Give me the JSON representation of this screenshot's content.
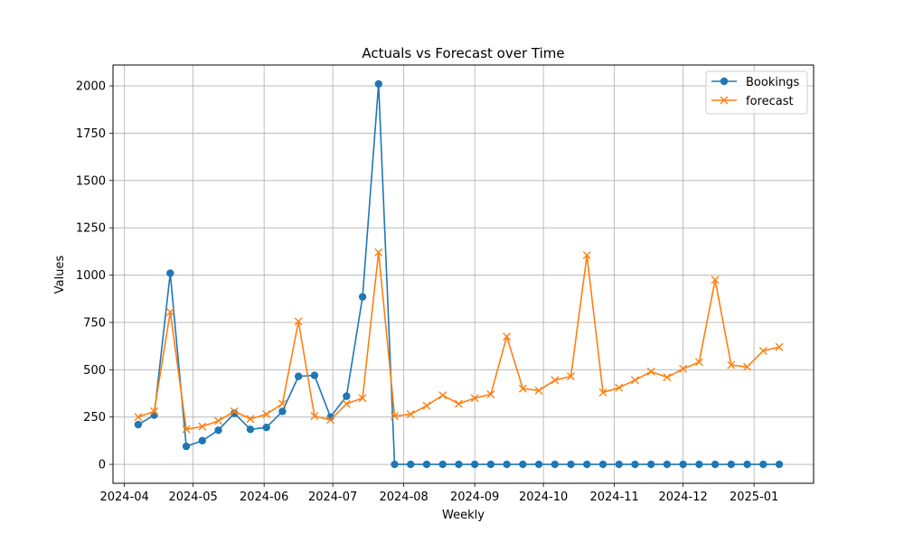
{
  "chart_data": {
    "type": "line",
    "title": "Actuals vs Forecast over Time",
    "xlabel": "Weekly",
    "ylabel": "Values",
    "ylim": [
      -100,
      2110
    ],
    "xlim": [
      "2024-03-27",
      "2025-01-27"
    ],
    "y_ticks": [
      0,
      250,
      500,
      750,
      1000,
      1250,
      1500,
      1750,
      2000
    ],
    "x_ticks": [
      "2024-04-01",
      "2024-05-01",
      "2024-06-01",
      "2024-07-01",
      "2024-08-01",
      "2024-09-01",
      "2024-10-01",
      "2024-11-01",
      "2024-12-01",
      "2025-01-01"
    ],
    "x_tick_labels": [
      "2024-04",
      "2024-05",
      "2024-06",
      "2024-07",
      "2024-08",
      "2024-09",
      "2024-10",
      "2024-11",
      "2024-12",
      "2025-01"
    ],
    "grid": true,
    "legend_position": "top-right",
    "dates": [
      "2024-04-07",
      "2024-04-14",
      "2024-04-21",
      "2024-04-28",
      "2024-05-05",
      "2024-05-12",
      "2024-05-19",
      "2024-05-26",
      "2024-06-02",
      "2024-06-09",
      "2024-06-16",
      "2024-06-23",
      "2024-06-30",
      "2024-07-07",
      "2024-07-14",
      "2024-07-21",
      "2024-07-28",
      "2024-08-04",
      "2024-08-11",
      "2024-08-18",
      "2024-08-25",
      "2024-09-01",
      "2024-09-08",
      "2024-09-15",
      "2024-09-22",
      "2024-09-29",
      "2024-10-06",
      "2024-10-13",
      "2024-10-20",
      "2024-10-27",
      "2024-11-03",
      "2024-11-10",
      "2024-11-17",
      "2024-11-24",
      "2024-12-01",
      "2024-12-08",
      "2024-12-15",
      "2024-12-22",
      "2024-12-29",
      "2025-01-05",
      "2025-01-12"
    ],
    "series": [
      {
        "name": "Bookings",
        "color": "#1f77b4",
        "marker": "circle",
        "values": [
          210,
          260,
          1010,
          95,
          125,
          180,
          270,
          185,
          195,
          280,
          465,
          470,
          250,
          360,
          885,
          2010,
          0,
          0,
          0,
          0,
          0,
          0,
          0,
          0,
          0,
          0,
          0,
          0,
          0,
          0,
          0,
          0,
          0,
          0,
          0,
          0,
          0,
          0,
          0,
          0,
          0
        ]
      },
      {
        "name": "forecast",
        "color": "#ff7f0e",
        "marker": "x",
        "values": [
          250,
          280,
          805,
          185,
          200,
          230,
          280,
          240,
          265,
          320,
          755,
          255,
          235,
          320,
          350,
          1120,
          255,
          265,
          310,
          365,
          320,
          350,
          370,
          675,
          400,
          390,
          445,
          465,
          1105,
          380,
          405,
          445,
          490,
          460,
          505,
          540,
          975,
          525,
          515,
          600,
          620
        ]
      }
    ]
  }
}
